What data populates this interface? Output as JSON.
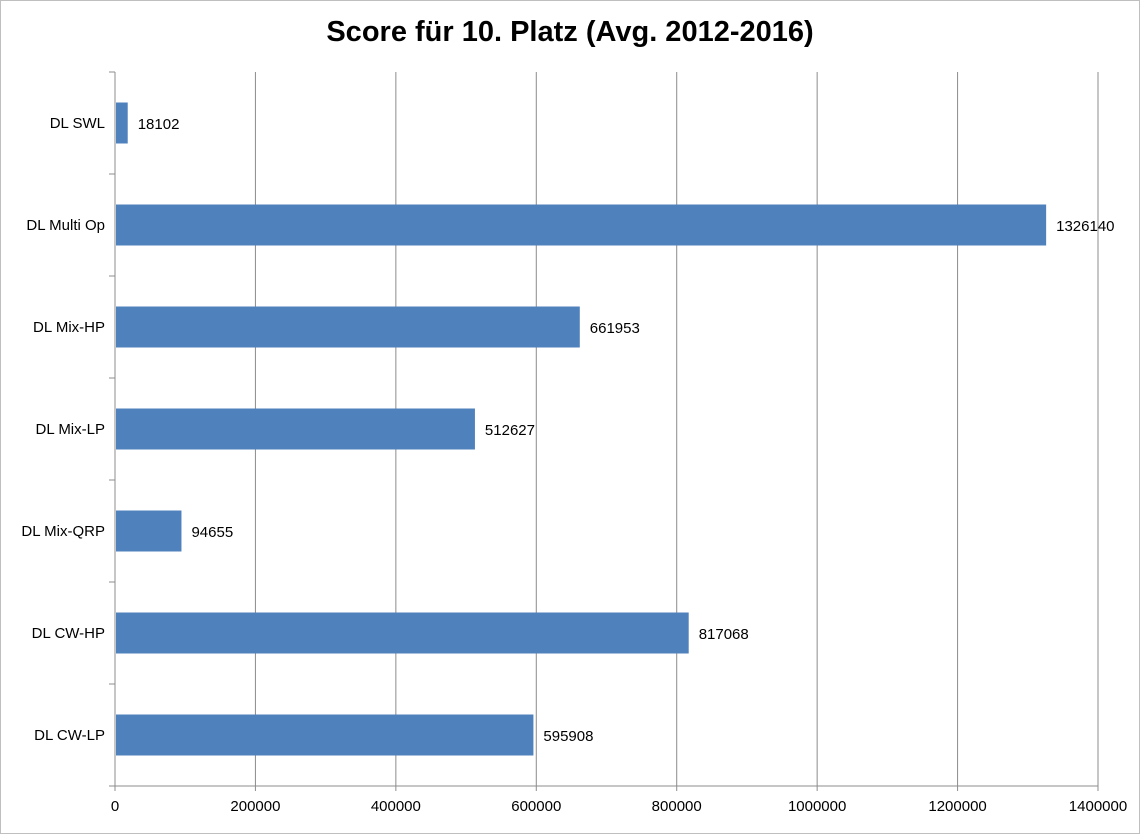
{
  "chart_data": {
    "type": "bar",
    "orientation": "horizontal",
    "title": "Score für 10. Platz (Avg. 2012-2016)",
    "xlabel": "",
    "ylabel": "",
    "categories": [
      "DL SWL",
      "DL Multi Op",
      "DL Mix-HP",
      "DL Mix-LP",
      "DL Mix-QRP",
      "DL CW-HP",
      "DL CW-LP"
    ],
    "values": [
      18102,
      1326140,
      661953,
      512627,
      94655,
      817068,
      595908
    ],
    "data_labels": [
      "18102",
      "1326140",
      "661953",
      "512627",
      "94655",
      "817068",
      "595908"
    ],
    "xlim": [
      0,
      1400000
    ],
    "x_ticks": [
      "0",
      "200000",
      "400000",
      "600000",
      "800000",
      "1000000",
      "1200000",
      "1400000"
    ],
    "grid": true,
    "legend": "none",
    "bar_color": "#4f81bd"
  }
}
